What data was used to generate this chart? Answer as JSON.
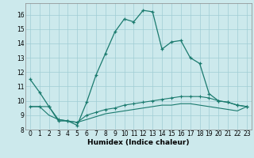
{
  "xlabel": "Humidex (Indice chaleur)",
  "ylabel": "",
  "bg_color": "#cce9ec",
  "grid_color": "#a0cdd4",
  "line_color": "#1a7a6e",
  "xlim": [
    -0.5,
    23.5
  ],
  "ylim": [
    8,
    16.8
  ],
  "yticks": [
    8,
    9,
    10,
    11,
    12,
    13,
    14,
    15,
    16
  ],
  "xticks": [
    0,
    1,
    2,
    3,
    4,
    5,
    6,
    7,
    8,
    9,
    10,
    11,
    12,
    13,
    14,
    15,
    16,
    17,
    18,
    19,
    20,
    21,
    22,
    23
  ],
  "line1_x": [
    0,
    1,
    2,
    3,
    4,
    5,
    6,
    7,
    8,
    9,
    10,
    11,
    12,
    13,
    14,
    15,
    16,
    17,
    18,
    19,
    20,
    21,
    22,
    23
  ],
  "line1_y": [
    11.5,
    10.6,
    9.6,
    8.6,
    8.6,
    8.3,
    9.9,
    11.8,
    13.3,
    14.8,
    15.7,
    15.5,
    16.3,
    16.2,
    13.6,
    14.1,
    14.2,
    13.0,
    12.6,
    10.5,
    10.0,
    9.9,
    9.7,
    9.6
  ],
  "line2_x": [
    0,
    1,
    2,
    3,
    4,
    5,
    6,
    7,
    8,
    9,
    10,
    11,
    12,
    13,
    14,
    15,
    16,
    17,
    18,
    19,
    20,
    21,
    22,
    23
  ],
  "line2_y": [
    9.6,
    9.6,
    9.6,
    8.7,
    8.6,
    8.5,
    9.0,
    9.2,
    9.4,
    9.5,
    9.7,
    9.8,
    9.9,
    10.0,
    10.1,
    10.2,
    10.3,
    10.3,
    10.3,
    10.2,
    10.0,
    9.9,
    9.7,
    9.6
  ],
  "line3_x": [
    0,
    1,
    2,
    3,
    4,
    5,
    6,
    7,
    8,
    9,
    10,
    11,
    12,
    13,
    14,
    15,
    16,
    17,
    18,
    19,
    20,
    21,
    22,
    23
  ],
  "line3_y": [
    9.6,
    9.6,
    9.0,
    8.7,
    8.6,
    8.5,
    8.7,
    8.9,
    9.1,
    9.2,
    9.3,
    9.4,
    9.5,
    9.6,
    9.7,
    9.7,
    9.8,
    9.8,
    9.7,
    9.6,
    9.5,
    9.4,
    9.3,
    9.6
  ],
  "tick_fontsize": 5.5,
  "xlabel_fontsize": 6.5
}
